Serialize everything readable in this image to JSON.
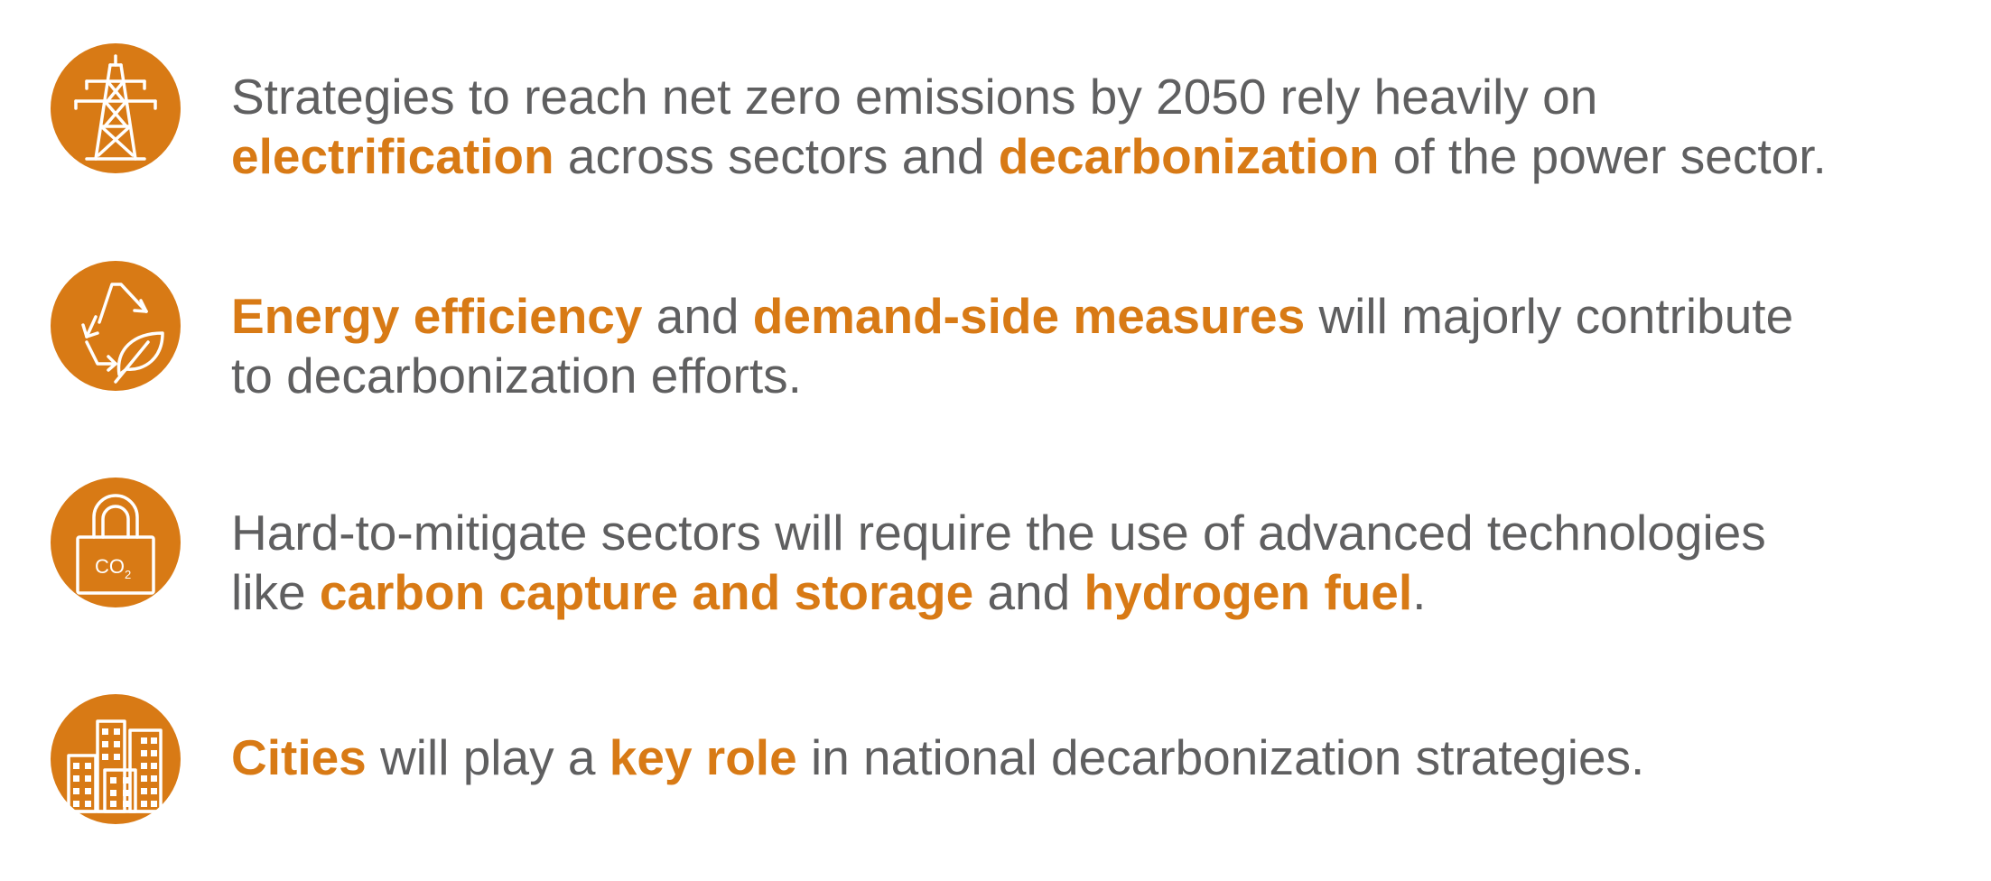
{
  "colors": {
    "accent": "#D87A15",
    "text": "#5F5F60",
    "background": "#FFFFFF"
  },
  "items": [
    {
      "icon": "power-tower-icon",
      "line1": [
        {
          "text": "Strategies to reach net zero emissions by 2050 rely heavily on",
          "highlight": false
        }
      ],
      "line2": [
        {
          "text": "electrification",
          "highlight": true
        },
        {
          "text": " across sectors and ",
          "highlight": false
        },
        {
          "text": "decarbonization",
          "highlight": true
        },
        {
          "text": " of the power sector.",
          "highlight": false
        }
      ]
    },
    {
      "icon": "recycle-leaf-icon",
      "line1": [
        {
          "text": "Energy efficiency",
          "highlight": true
        },
        {
          "text": " and ",
          "highlight": false
        },
        {
          "text": "demand-side measures",
          "highlight": true
        },
        {
          "text": " will majorly contribute",
          "highlight": false
        }
      ],
      "line2": [
        {
          "text": "to decarbonization efforts.",
          "highlight": false
        }
      ]
    },
    {
      "icon": "co2-padlock-icon",
      "icon_label": "CO",
      "icon_subscript": "2",
      "line1": [
        {
          "text": "Hard-to-mitigate sectors will require the use of advanced technologies",
          "highlight": false
        }
      ],
      "line2": [
        {
          "text": "like ",
          "highlight": false
        },
        {
          "text": "carbon capture and storage",
          "highlight": true
        },
        {
          "text": " and ",
          "highlight": false
        },
        {
          "text": "hydrogen fuel",
          "highlight": true
        },
        {
          "text": ".",
          "highlight": false
        }
      ]
    },
    {
      "icon": "city-buildings-icon",
      "line1": [
        {
          "text": "Cities",
          "highlight": true
        },
        {
          "text": " will play a ",
          "highlight": false
        },
        {
          "text": "key role",
          "highlight": true
        },
        {
          "text": " in national decarbonization strategies.",
          "highlight": false
        }
      ]
    }
  ]
}
